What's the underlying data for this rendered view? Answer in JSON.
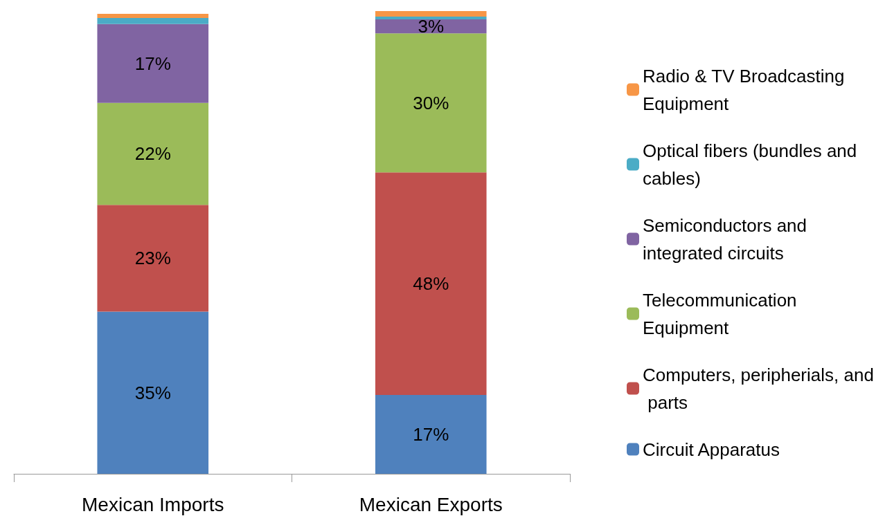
{
  "chart_data": {
    "type": "bar",
    "stacked": true,
    "categories": [
      "Mexican Imports",
      "Mexican Exports"
    ],
    "series": [
      {
        "name": "Circuit Apparatus",
        "color": "#4f81bd",
        "values": [
          35,
          17
        ],
        "value_labels": [
          "35%",
          "17%"
        ]
      },
      {
        "name": "Computers, peripherials, and parts",
        "color": "#c0504d",
        "values": [
          23,
          48
        ],
        "value_labels": [
          "23%",
          "48%"
        ]
      },
      {
        "name": "Telecommunication Equipment",
        "color": "#9bbb59",
        "values": [
          22,
          30
        ],
        "value_labels": [
          "22%",
          "30%"
        ]
      },
      {
        "name": "Semiconductors and integrated circuits",
        "color": "#8064a2",
        "values": [
          17,
          3
        ],
        "value_labels": [
          "17%",
          "3%"
        ]
      },
      {
        "name": "Optical fibers (bundles and cables)",
        "color": "#4bacc6",
        "values": [
          1.3,
          0.6
        ],
        "value_labels": [
          null,
          null
        ]
      },
      {
        "name": "Radio & TV Broadcasting Equipment",
        "color": "#f79646",
        "values": [
          0.9,
          1.2
        ],
        "value_labels": [
          null,
          null
        ]
      }
    ],
    "legend": "right",
    "tick_labels": "x"
  }
}
